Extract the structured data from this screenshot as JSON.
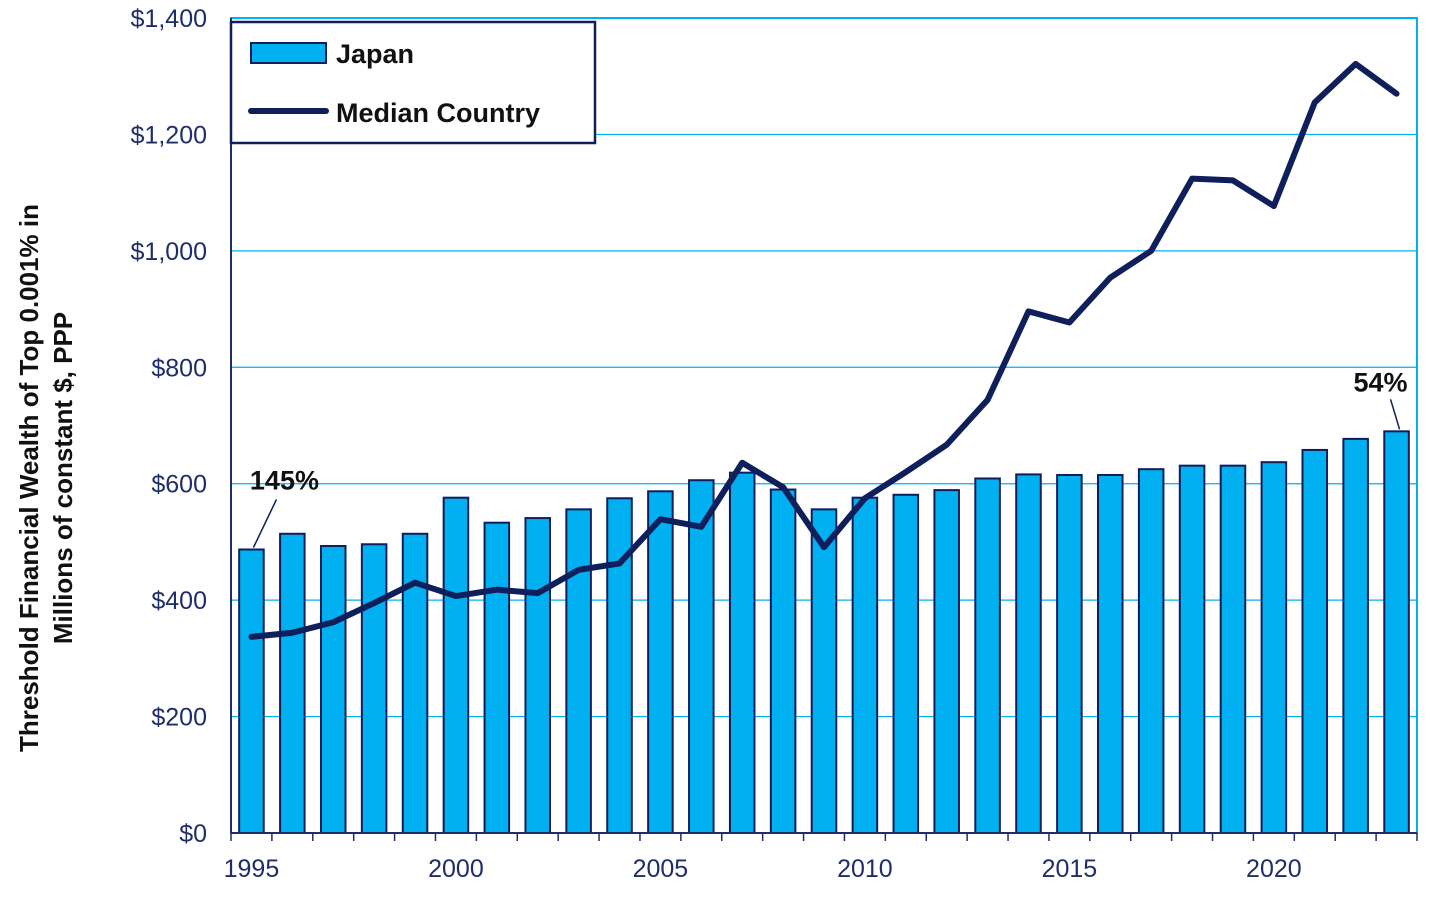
{
  "chart_data": {
    "type": "bar",
    "title": "",
    "xlabel": "",
    "ylabel_lines": [
      "Threshold Financial Wealth of Top 0.001% in",
      "Millions of constant  $, PPP"
    ],
    "ylim": [
      0,
      1400
    ],
    "y_ticks": [
      0,
      200,
      400,
      600,
      800,
      1000,
      1200,
      1400
    ],
    "y_tick_labels": [
      "$0",
      "$200",
      "$400",
      "$600",
      "$800",
      "$1,000",
      "$1,200",
      "$1,400"
    ],
    "x_tick_years": [
      1995,
      2000,
      2005,
      2010,
      2015,
      2020
    ],
    "x_tick_labels": [
      "1995",
      "2000",
      "2005",
      "2010",
      "2015",
      "2020"
    ],
    "years": [
      1995,
      1996,
      1997,
      1998,
      1999,
      2000,
      2001,
      2002,
      2003,
      2004,
      2005,
      2006,
      2007,
      2008,
      2009,
      2010,
      2011,
      2012,
      2013,
      2014,
      2015,
      2016,
      2017,
      2018,
      2019,
      2020,
      2021,
      2022,
      2023
    ],
    "series": [
      {
        "name": "Japan",
        "kind": "bar",
        "color": "#00b0f0",
        "values": [
          487,
          514,
          493,
          496,
          514,
          576,
          533,
          541,
          556,
          575,
          587,
          606,
          619,
          590,
          556,
          576,
          581,
          589,
          609,
          616,
          615,
          615,
          625,
          631,
          631,
          637,
          658,
          677,
          690
        ]
      },
      {
        "name": "Median Country",
        "kind": "line",
        "color": "#0f1f5c",
        "values": [
          337,
          344,
          362,
          395,
          430,
          407,
          418,
          412,
          452,
          463,
          539,
          526,
          636,
          594,
          491,
          575,
          620,
          667,
          744,
          896,
          877,
          954,
          1000,
          1124,
          1121,
          1077,
          1255,
          1321,
          1270
        ]
      }
    ],
    "annotations": [
      {
        "text": "145%",
        "year": 1995
      },
      {
        "text": "54%",
        "year": 2023
      }
    ],
    "legend": {
      "position": "top-left"
    },
    "grid": true
  }
}
